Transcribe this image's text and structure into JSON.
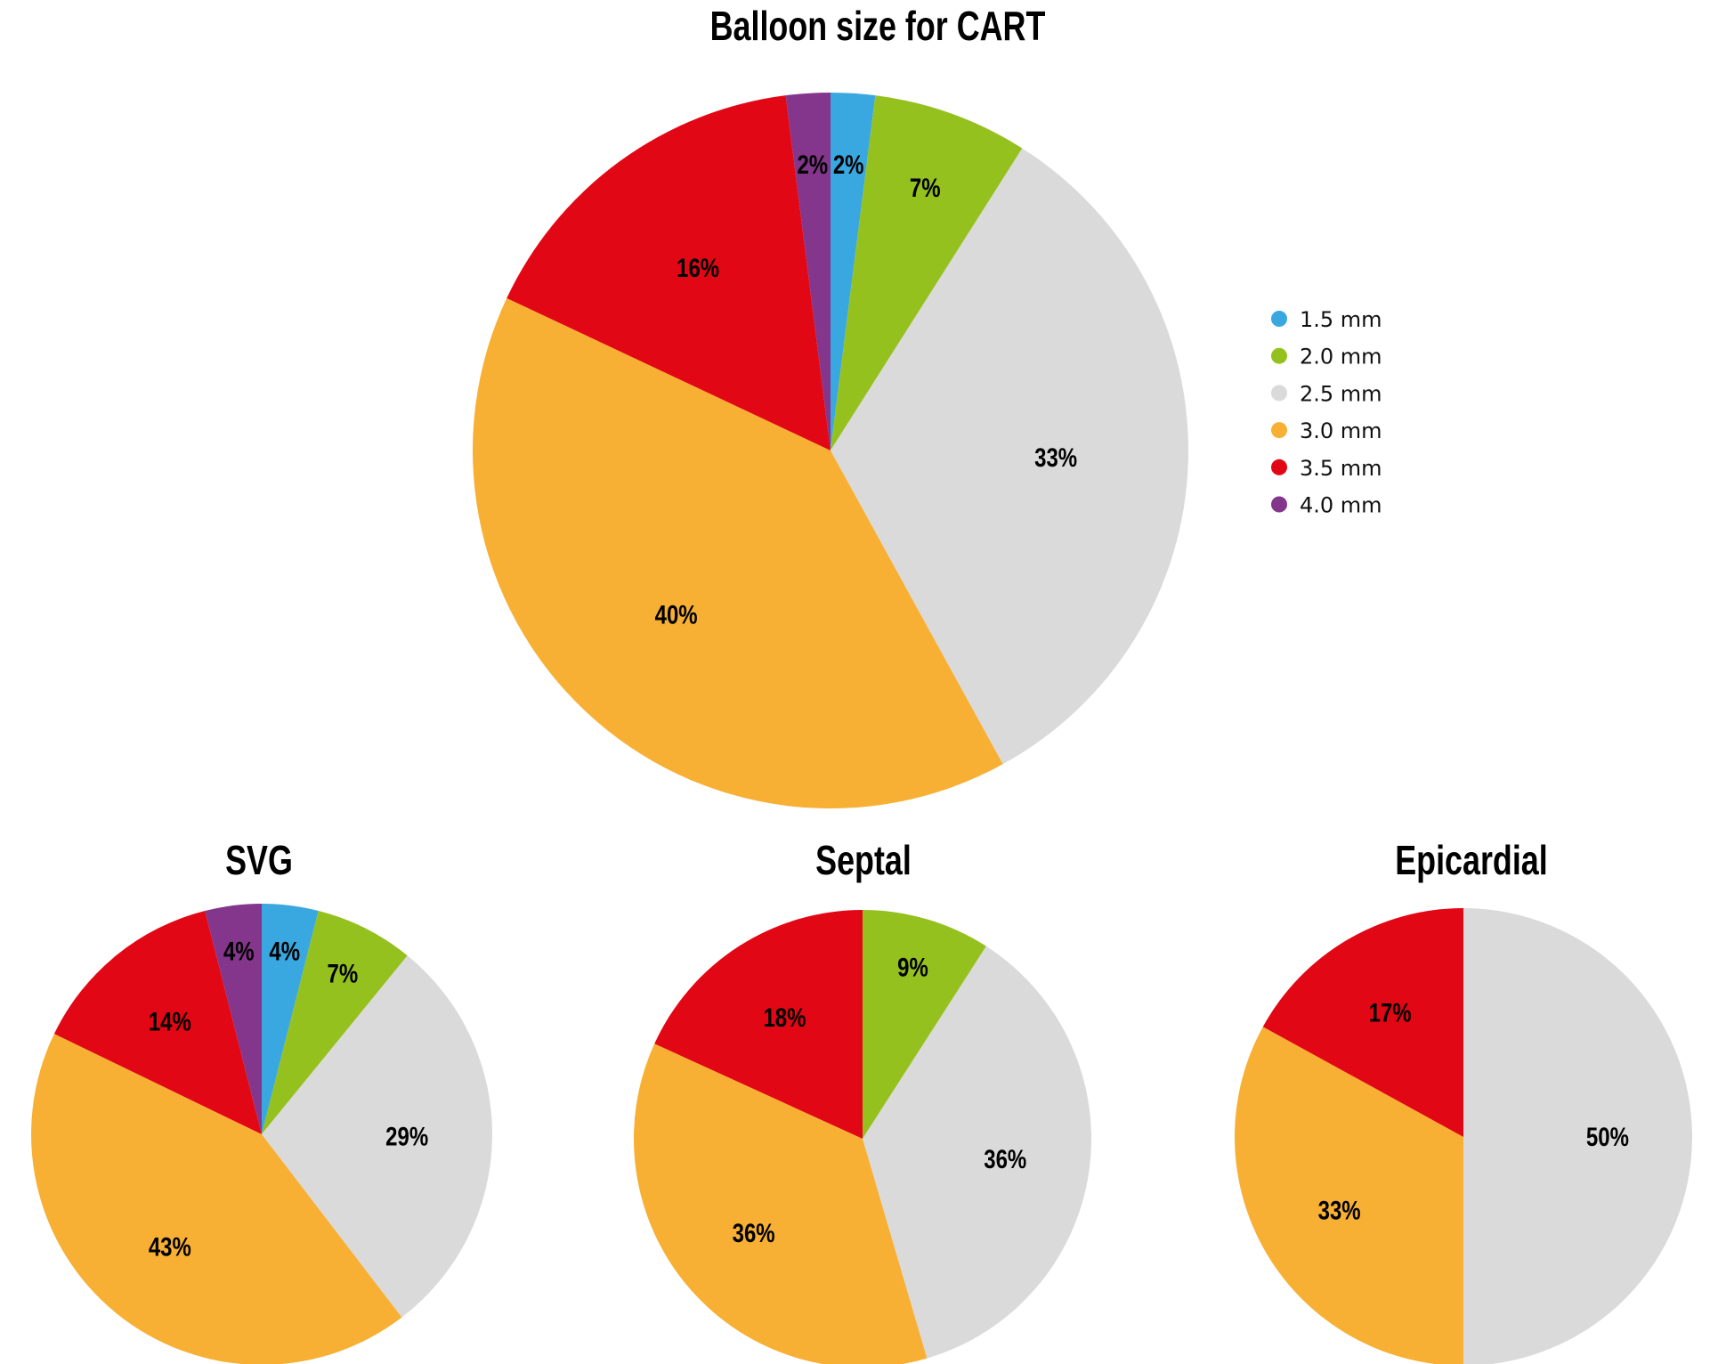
{
  "categories": [
    "1.5 mm",
    "2.0 mm",
    "2.5 mm",
    "3.0 mm",
    "3.5 mm",
    "4.0 mm"
  ],
  "colors": [
    "#3aa8e0",
    "#95c11f",
    "#dadada",
    "#f7b033",
    "#e20714",
    "#84368c"
  ],
  "legend": {
    "position": "right",
    "items": [
      "1.5 mm",
      "2.0 mm",
      "2.5 mm",
      "3.0 mm",
      "3.5 mm",
      "4.0 mm"
    ]
  },
  "chart_data": [
    {
      "type": "pie",
      "title": "Balloon size for CART",
      "categories": [
        "1.5 mm",
        "2.0 mm",
        "2.5 mm",
        "3.0 mm",
        "3.5 mm",
        "4.0 mm"
      ],
      "values": [
        2,
        7,
        33,
        40,
        16,
        2
      ],
      "labels": [
        "2%",
        "7%",
        "33%",
        "40%",
        "16%",
        "2%"
      ]
    },
    {
      "type": "pie",
      "title": "SVG",
      "categories": [
        "1.5 mm",
        "2.0 mm",
        "2.5 mm",
        "3.0 mm",
        "3.5 mm",
        "4.0 mm"
      ],
      "values": [
        4,
        7,
        29,
        43,
        14,
        4
      ],
      "labels": [
        "4%",
        "7%",
        "29%",
        "43%",
        "14%",
        "4%"
      ]
    },
    {
      "type": "pie",
      "title": "Septal",
      "categories": [
        "1.5 mm",
        "2.0 mm",
        "2.5 mm",
        "3.0 mm",
        "3.5 mm",
        "4.0 mm"
      ],
      "values": [
        0,
        9,
        36,
        36,
        18,
        0
      ],
      "labels": [
        "",
        "9%",
        "36%",
        "36%",
        "18%",
        ""
      ]
    },
    {
      "type": "pie",
      "title": "Epicardial",
      "categories": [
        "1.5 mm",
        "2.0 mm",
        "2.5 mm",
        "3.0 mm",
        "3.5 mm",
        "4.0 mm"
      ],
      "values": [
        0,
        0,
        50,
        33,
        17,
        0
      ],
      "labels": [
        "",
        "",
        "50%",
        "33%",
        "17%",
        ""
      ]
    }
  ]
}
